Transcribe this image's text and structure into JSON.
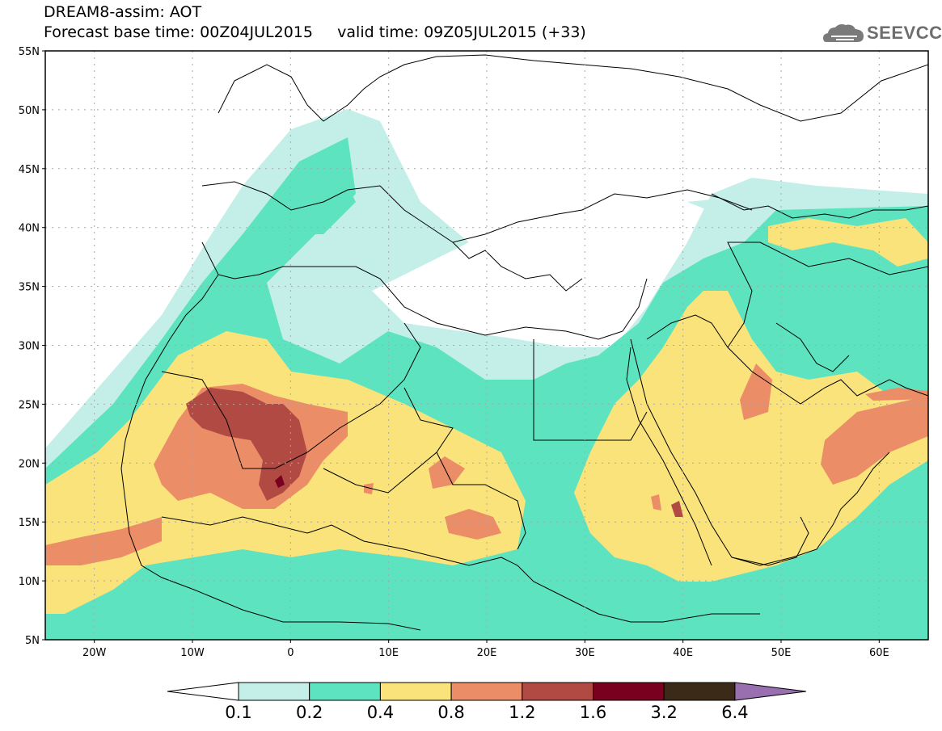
{
  "header": {
    "title_line1": "DREAM8-assim: AOT",
    "title_line2": "Forecast base time: 00Z04JUL2015     valid time: 09Z05JUL2015 (+33)"
  },
  "logo": {
    "text": "SEEVCCC",
    "icon": "cloud-icon"
  },
  "map": {
    "lat_labels": [
      "55N",
      "50N",
      "45N",
      "40N",
      "35N",
      "30N",
      "25N",
      "20N",
      "15N",
      "10N",
      "5N"
    ],
    "lon_labels": [
      "20W",
      "10W",
      "0",
      "10E",
      "20E",
      "30E",
      "40E",
      "50E",
      "60E"
    ],
    "lat_range": [
      5,
      55
    ],
    "lon_range": [
      -25,
      65
    ],
    "grid": "dotted"
  },
  "legend": {
    "variable": "AOT",
    "thresholds": [
      "0.1",
      "0.2",
      "0.4",
      "0.8",
      "1.2",
      "1.6",
      "3.2",
      "6.4"
    ],
    "colors": [
      "#ffffff",
      "#c4efe8",
      "#5de3c0",
      "#f9e37a",
      "#eb8e68",
      "#b04a43",
      "#7a0020",
      "#3c2a18",
      "#9a6fb0"
    ]
  }
}
